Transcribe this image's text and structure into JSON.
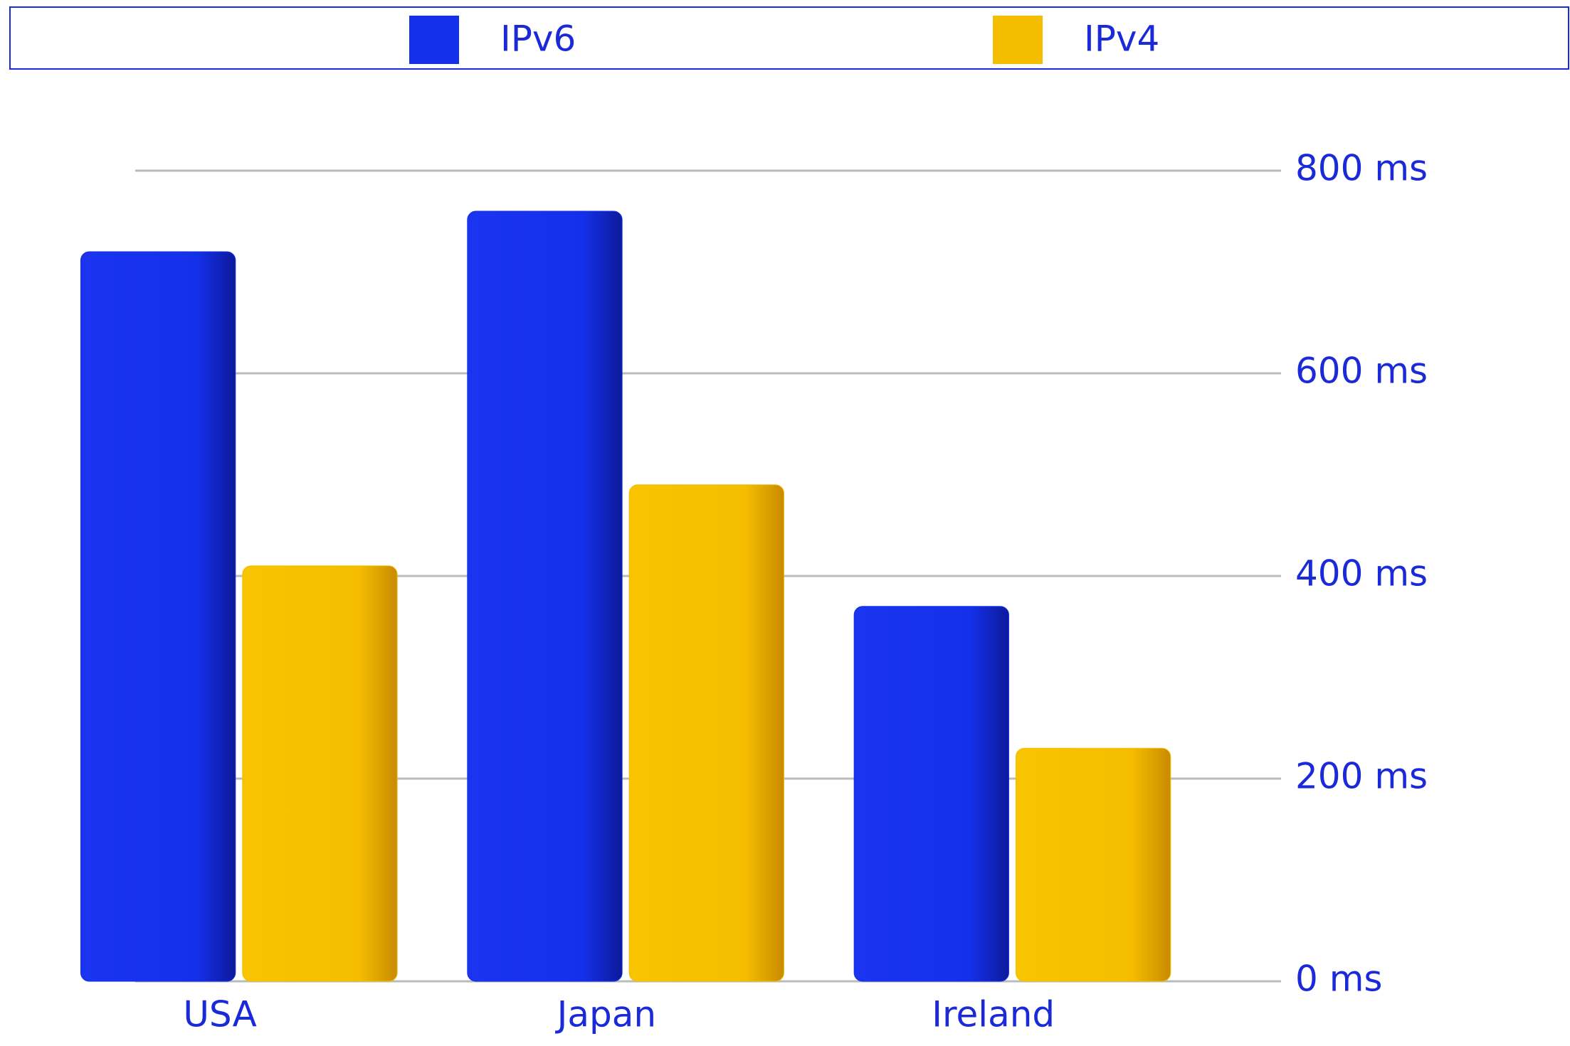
{
  "chart_data": {
    "type": "bar",
    "categories": [
      "USA",
      "Japan",
      "Ireland"
    ],
    "series": [
      {
        "name": "IPv6",
        "color": "#1530ea",
        "values": [
          720,
          760,
          370
        ]
      },
      {
        "name": "IPv4",
        "color": "#f5bd00",
        "values": [
          410,
          490,
          230
        ]
      }
    ],
    "ylim": [
      0,
      800
    ],
    "yticks": [
      {
        "value": 0,
        "label": "0 ms"
      },
      {
        "value": 200,
        "label": "200 ms"
      },
      {
        "value": 400,
        "label": "400 ms"
      },
      {
        "value": 600,
        "label": "600 ms"
      },
      {
        "value": 800,
        "label": "800 ms"
      }
    ],
    "grid": true,
    "legend": "top"
  }
}
